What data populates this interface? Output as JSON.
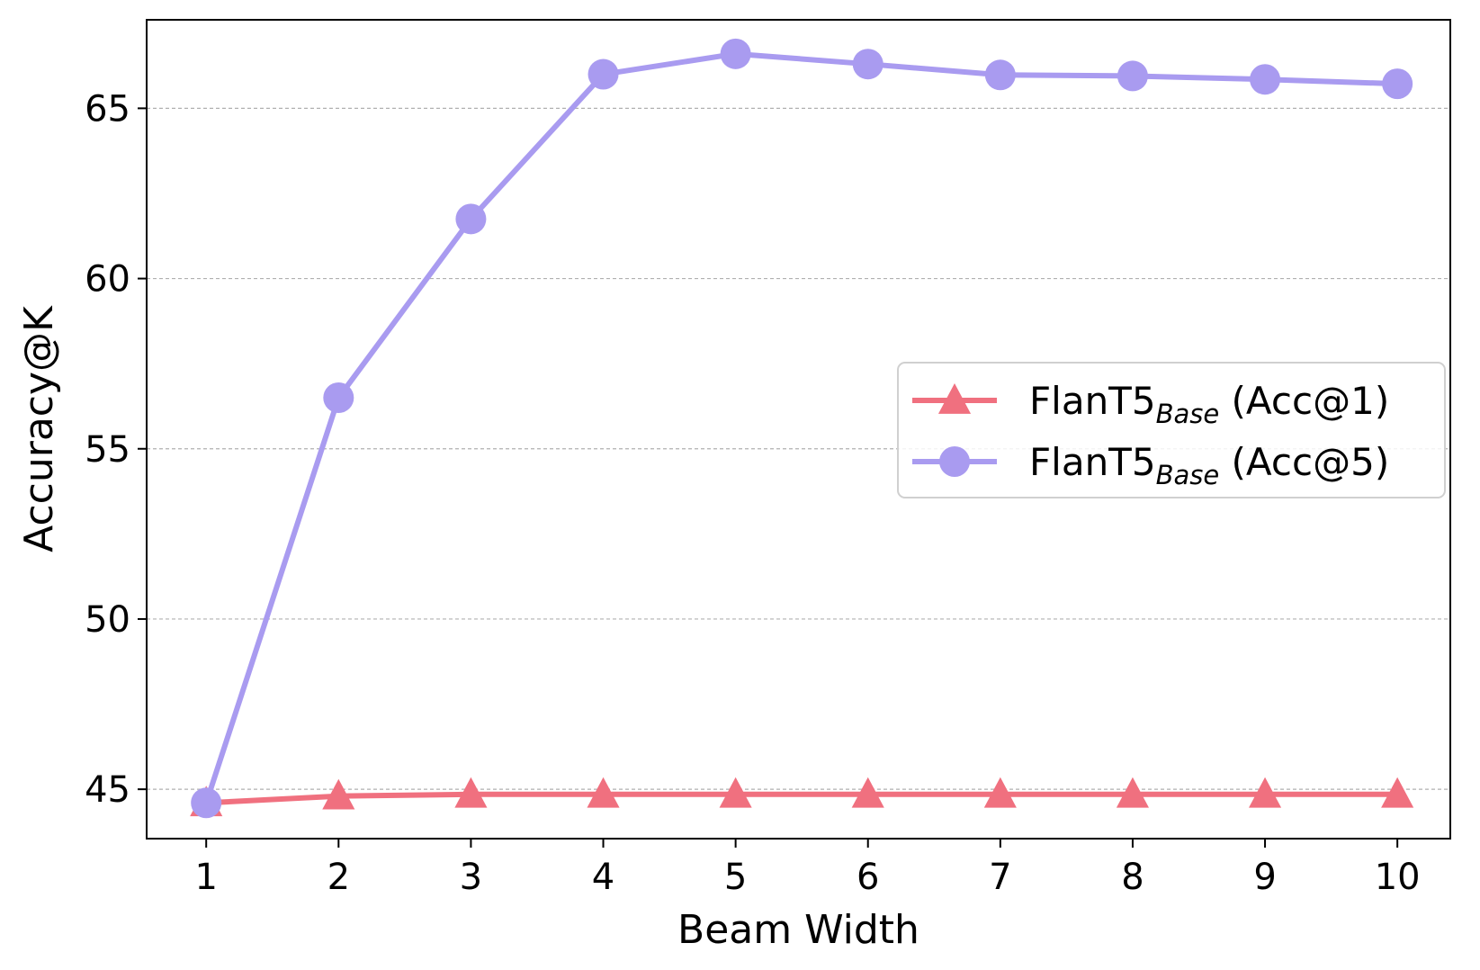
{
  "chart_data": {
    "type": "line",
    "xlabel": "Beam Width",
    "ylabel": "Accuracy@K",
    "x": [
      1,
      2,
      3,
      4,
      5,
      6,
      7,
      8,
      9,
      10
    ],
    "xlim": [
      0.55,
      10.4
    ],
    "ylim": [
      43.55,
      67.6
    ],
    "yticks": [
      45,
      50,
      55,
      60,
      65
    ],
    "grid": "horizontal dashed",
    "legend_position": "center-right",
    "series": [
      {
        "name": "FlanT5",
        "name_subscript": "Base",
        "name_suffix": " (Acc@1)",
        "marker": "triangle",
        "color": "#f0707f",
        "values": [
          44.6,
          44.8,
          44.85,
          44.85,
          44.85,
          44.85,
          44.85,
          44.85,
          44.85,
          44.85
        ]
      },
      {
        "name": "FlanT5",
        "name_subscript": "Base",
        "name_suffix": " (Acc@5)",
        "marker": "circle",
        "color": "#a99bf0",
        "values": [
          44.6,
          56.5,
          61.75,
          66.0,
          66.6,
          66.3,
          65.98,
          65.95,
          65.85,
          65.72
        ]
      }
    ]
  }
}
